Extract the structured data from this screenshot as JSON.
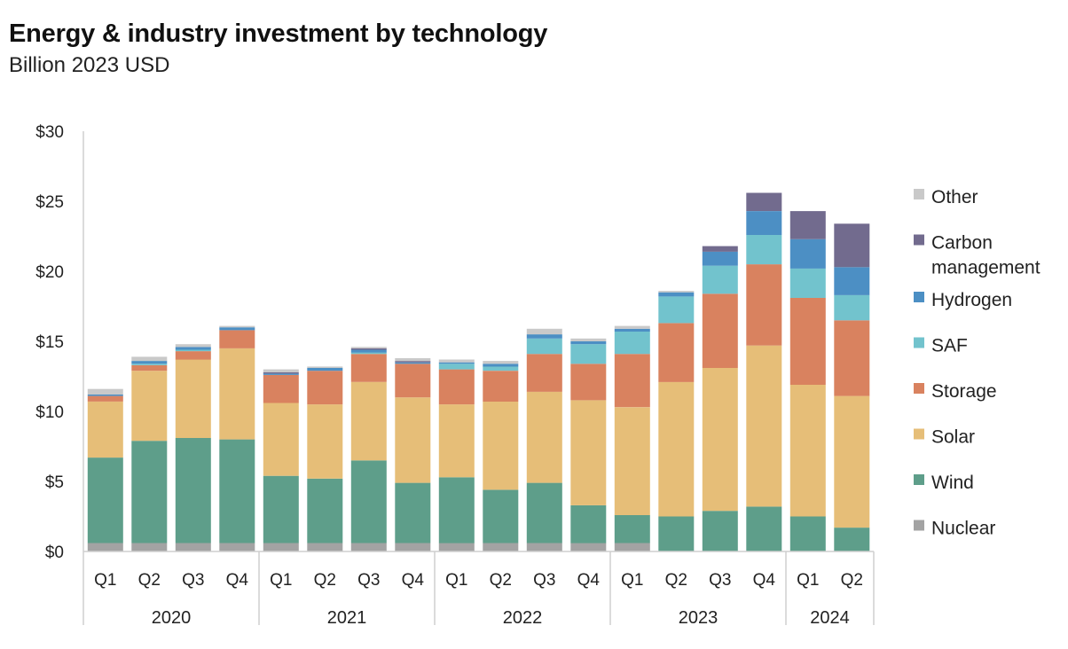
{
  "title": "Energy & industry investment by technology",
  "subtitle": "Billion 2023 USD",
  "chart_data": {
    "type": "bar",
    "stacked": true,
    "categories": [
      "Q1",
      "Q2",
      "Q3",
      "Q4",
      "Q1",
      "Q2",
      "Q3",
      "Q4",
      "Q1",
      "Q2",
      "Q3",
      "Q4",
      "Q1",
      "Q2",
      "Q3",
      "Q4",
      "Q1",
      "Q2"
    ],
    "groups": [
      {
        "label": "2020",
        "count": 4
      },
      {
        "label": "2021",
        "count": 4
      },
      {
        "label": "2022",
        "count": 4
      },
      {
        "label": "2023",
        "count": 4
      },
      {
        "label": "2024",
        "count": 2
      }
    ],
    "yticks": [
      "$0",
      "$5",
      "$10",
      "$15",
      "$20",
      "$25",
      "$30"
    ],
    "ylim": [
      0,
      30
    ],
    "legend_position": "right",
    "series": [
      {
        "name": "Nuclear",
        "color": "#a3a3a3",
        "values": [
          0.6,
          0.6,
          0.6,
          0.6,
          0.6,
          0.6,
          0.6,
          0.6,
          0.6,
          0.6,
          0.6,
          0.6,
          0.6,
          0,
          0,
          0,
          0,
          0
        ]
      },
      {
        "name": "Wind",
        "color": "#5e9e8a",
        "values": [
          6.1,
          7.3,
          7.5,
          7.4,
          4.8,
          4.6,
          5.9,
          4.3,
          4.7,
          3.8,
          4.3,
          2.7,
          2.0,
          2.5,
          2.9,
          3.2,
          2.5,
          1.7
        ]
      },
      {
        "name": "Solar",
        "color": "#e6be78",
        "values": [
          4.0,
          5.0,
          5.6,
          6.5,
          5.2,
          5.3,
          5.6,
          6.1,
          5.2,
          6.3,
          6.5,
          7.5,
          7.7,
          9.6,
          10.2,
          11.5,
          9.4,
          9.4
        ]
      },
      {
        "name": "Storage",
        "color": "#d9825f",
        "values": [
          0.4,
          0.4,
          0.6,
          1.3,
          2.0,
          2.4,
          2.0,
          2.4,
          2.5,
          2.2,
          2.7,
          2.6,
          3.8,
          4.2,
          5.3,
          5.8,
          6.2,
          5.4
        ]
      },
      {
        "name": "SAF",
        "color": "#72c3cd",
        "values": [
          0,
          0.1,
          0.1,
          0,
          0,
          0,
          0.1,
          0,
          0.4,
          0.3,
          1.1,
          1.4,
          1.6,
          1.9,
          2.0,
          2.1,
          2.1,
          1.8
        ]
      },
      {
        "name": "Hydrogen",
        "color": "#4c8fc4",
        "values": [
          0.1,
          0.2,
          0.2,
          0.2,
          0.1,
          0.2,
          0.2,
          0.1,
          0.1,
          0.2,
          0.3,
          0.2,
          0.2,
          0.3,
          1.0,
          1.7,
          2.1,
          2.0
        ]
      },
      {
        "name": "Carbon management",
        "color": "#726b8e",
        "values": [
          0,
          0,
          0,
          0,
          0.1,
          0,
          0.1,
          0.1,
          0,
          0,
          0,
          0,
          0,
          0,
          0.4,
          1.3,
          2.0,
          3.1
        ]
      },
      {
        "name": "Other",
        "color": "#c9c9c9",
        "values": [
          0.4,
          0.3,
          0.2,
          0.1,
          0.2,
          0.1,
          0.1,
          0.2,
          0.2,
          0.2,
          0.4,
          0.2,
          0.2,
          0.1,
          0,
          0,
          0,
          0
        ]
      }
    ]
  }
}
